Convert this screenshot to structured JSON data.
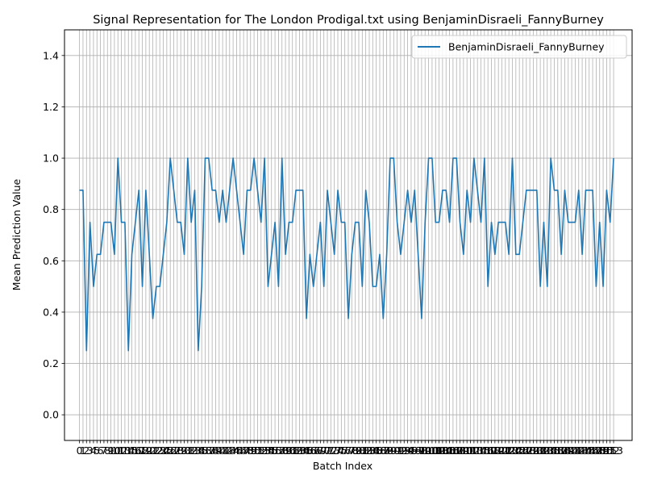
{
  "chart_data": {
    "type": "line",
    "title": "Signal Representation for The London Prodigal.txt using BenjaminDisraeli_FannyBurney",
    "xlabel": "Batch Index",
    "ylabel": "Mean Prediction Value",
    "xlim": [
      -4.3,
      158.3
    ],
    "ylim": [
      -0.1,
      1.5
    ],
    "yticks": [
      0.0,
      0.2,
      0.4,
      0.6,
      0.8,
      1.0,
      1.2,
      1.4
    ],
    "ytick_labels": [
      "0.0",
      "0.2",
      "0.4",
      "0.6",
      "0.8",
      "1.0",
      "1.2",
      "1.4"
    ],
    "xticks_start": 0,
    "xticks_end": 153,
    "grid": true,
    "legend_position": "top-right",
    "series": [
      {
        "name": "BenjaminDisraeli_FannyBurney",
        "color": "#1f77b4",
        "values": [
          0.875,
          0.875,
          0.25,
          0.75,
          0.5,
          0.625,
          0.625,
          0.75,
          0.75,
          0.75,
          0.625,
          1.0,
          0.75,
          0.75,
          0.25,
          0.625,
          0.75,
          0.875,
          0.5,
          0.875,
          0.625,
          0.375,
          0.5,
          0.5,
          0.625,
          0.75,
          1.0,
          0.875,
          0.75,
          0.75,
          0.625,
          1.0,
          0.75,
          0.875,
          0.25,
          0.5,
          1.0,
          1.0,
          0.875,
          0.875,
          0.75,
          0.875,
          0.75,
          0.875,
          1.0,
          0.875,
          0.75,
          0.625,
          0.875,
          0.875,
          1.0,
          0.875,
          0.75,
          1.0,
          0.5,
          0.625,
          0.75,
          0.5,
          1.0,
          0.625,
          0.75,
          0.75,
          0.875,
          0.875,
          0.875,
          0.375,
          0.625,
          0.5,
          0.625,
          0.75,
          0.5,
          0.875,
          0.75,
          0.625,
          0.875,
          0.75,
          0.75,
          0.375,
          0.625,
          0.75,
          0.75,
          0.5,
          0.875,
          0.75,
          0.5,
          0.5,
          0.625,
          0.375,
          0.625,
          1.0,
          1.0,
          0.75,
          0.625,
          0.75,
          0.875,
          0.75,
          0.875,
          0.625,
          0.375,
          0.75,
          1.0,
          1.0,
          0.75,
          0.75,
          0.875,
          0.875,
          0.75,
          1.0,
          1.0,
          0.75,
          0.625,
          0.875,
          0.75,
          1.0,
          0.875,
          0.75,
          1.0,
          0.5,
          0.75,
          0.625,
          0.75,
          0.75,
          0.75,
          0.625,
          1.0,
          0.625,
          0.625,
          0.75,
          0.875,
          0.875,
          0.875,
          0.875,
          0.5,
          0.75,
          0.5,
          1.0,
          0.875,
          0.875,
          0.625,
          0.875,
          0.75,
          0.75,
          0.75,
          0.875,
          0.625,
          0.875,
          0.875,
          0.875,
          0.5,
          0.75,
          0.5,
          0.875,
          0.75,
          1.0
        ]
      }
    ]
  }
}
